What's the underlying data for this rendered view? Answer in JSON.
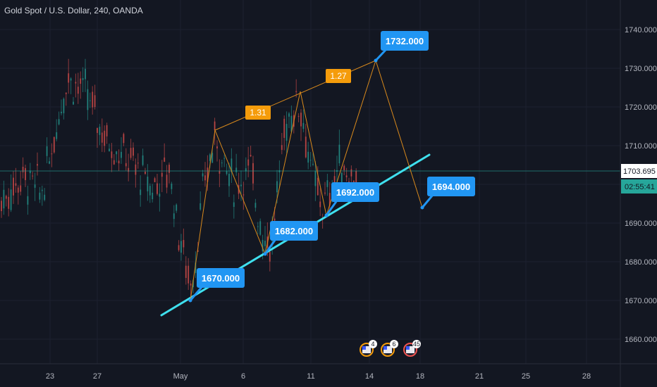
{
  "header": {
    "title": "Gold Spot / U.S. Dollar, 240, OANDA"
  },
  "colors": {
    "background": "#131722",
    "grid": "#1c2030",
    "candle_up": "#26a69a",
    "candle_down": "#ef5350",
    "trendline": "#3fe0ee",
    "pattern_line": "#d8891c",
    "callout": "#2196f3",
    "ratio_box": "#f59c0b",
    "current_price": "#26a69a"
  },
  "chart_data": {
    "type": "candlestick",
    "title": "Gold Spot / U.S. Dollar, 240, OANDA",
    "ylim": [
      1652,
      1750
    ],
    "y_ticks": [
      "1660.000",
      "1670.000",
      "1680.000",
      "1690.000",
      "1700.000",
      "1710.000",
      "1720.000",
      "1730.000",
      "1740.000"
    ],
    "x_tick_labels": [
      "23",
      "27",
      "May",
      "6",
      "11",
      "14",
      "18",
      "21",
      "25",
      "28"
    ],
    "grid": true,
    "current_price": "1703.695",
    "countdown": "02:55:41",
    "pattern_points": [
      {
        "label": "1670.000",
        "price": 1670
      },
      {
        "price": 1714
      },
      {
        "label": "1682.000",
        "price": 1682
      },
      {
        "price": 1724
      },
      {
        "label": "1692.000",
        "price": 1692
      },
      {
        "label": "1732.000",
        "price": 1732
      },
      {
        "label": "1694.000",
        "price": 1694
      }
    ],
    "ratios": [
      "1.31",
      "1.27"
    ],
    "events": [
      "4",
      "6",
      "45"
    ]
  }
}
